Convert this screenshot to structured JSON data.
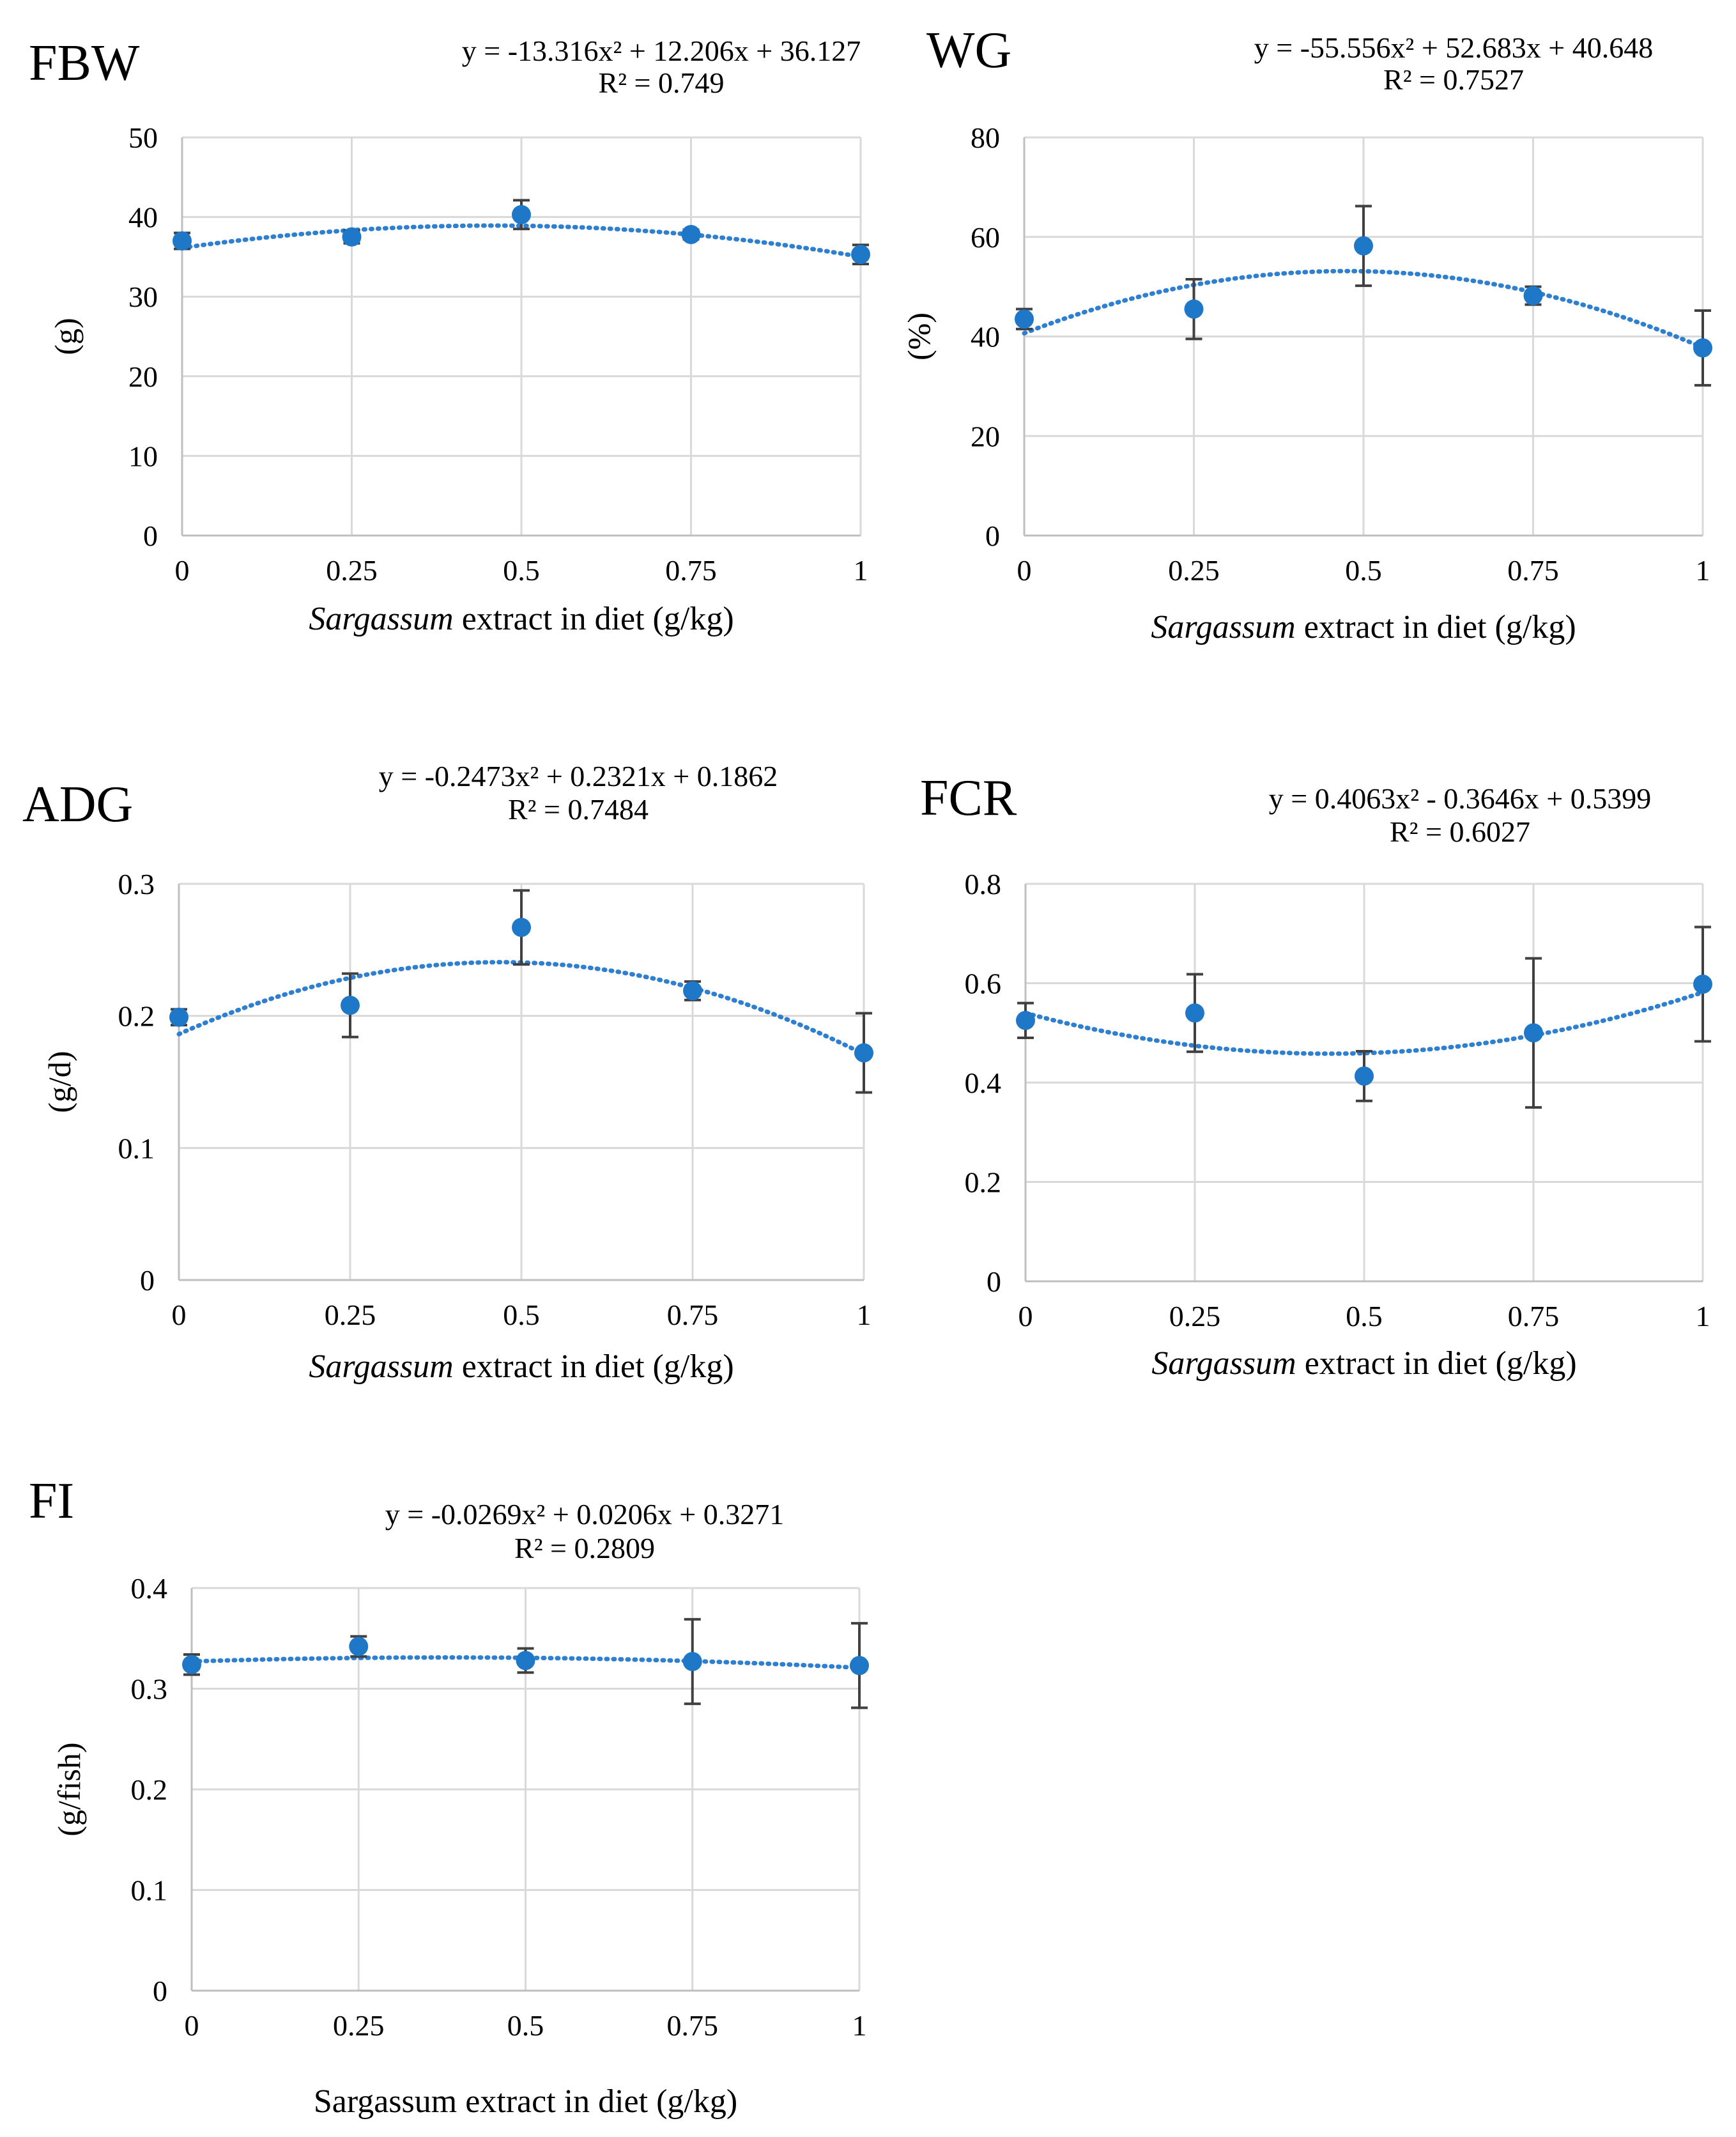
{
  "figure": {
    "colors": {
      "point": "#1f77c8",
      "trend": "#2f7fd0",
      "grid": "#d9d9d9",
      "axis": "#bfbfbf",
      "error": "#404040",
      "text": "#000000"
    }
  },
  "chart_data": [
    {
      "id": "fbw",
      "type": "scatter",
      "panel_title": "FBW",
      "equation": "y = -13.316x² + 12.206x + 36.127",
      "r2": "R² = 0.749",
      "ylabel": "(g)",
      "xlabel_italic": "Sargassum",
      "xlabel_rest": " extract in diet (g/kg)",
      "x": [
        0,
        0.25,
        0.5,
        0.75,
        1
      ],
      "y": [
        37.0,
        37.5,
        40.3,
        37.8,
        35.3
      ],
      "err": [
        1.0,
        0.8,
        1.8,
        0.6,
        1.2
      ],
      "trend": {
        "a": -13.316,
        "b": 12.206,
        "c": 36.127
      },
      "xlim": [
        0,
        1
      ],
      "ylim": [
        0,
        50
      ],
      "yticks": [
        0,
        10,
        20,
        30,
        40,
        50
      ],
      "ytick_labels": [
        "0",
        "10",
        "20",
        "30",
        "40",
        "50"
      ],
      "xtick_labels": [
        "0",
        "0.25",
        "0.5",
        "0.75",
        "1"
      ]
    },
    {
      "id": "wg",
      "type": "scatter",
      "panel_title": "WG",
      "equation": "y = -55.556x² + 52.683x + 40.648",
      "r2": "R² = 0.7527",
      "ylabel": "(%)",
      "xlabel_italic": "Sargassum",
      "xlabel_rest": " extract in diet (g/kg)",
      "x": [
        0,
        0.25,
        0.5,
        0.75,
        1
      ],
      "y": [
        43.5,
        45.5,
        58.2,
        48.2,
        37.7
      ],
      "err": [
        2.0,
        6.0,
        8.0,
        1.8,
        7.5
      ],
      "trend": {
        "a": -55.556,
        "b": 52.683,
        "c": 40.648
      },
      "xlim": [
        0,
        1
      ],
      "ylim": [
        0,
        80
      ],
      "yticks": [
        0,
        20,
        40,
        60,
        80
      ],
      "ytick_labels": [
        "0",
        "20",
        "40",
        "60",
        "80"
      ],
      "xtick_labels": [
        "0",
        "0.25",
        "0.5",
        "0.75",
        "1"
      ]
    },
    {
      "id": "adg",
      "type": "scatter",
      "panel_title": "ADG",
      "equation": "y = -0.2473x² + 0.2321x + 0.1862",
      "r2": "R² = 0.7484",
      "ylabel": "(g/d)",
      "xlabel_italic": "Sargassum",
      "xlabel_rest": " extract in diet (g/kg)",
      "x": [
        0,
        0.25,
        0.5,
        0.75,
        1
      ],
      "y": [
        0.199,
        0.208,
        0.267,
        0.219,
        0.172
      ],
      "err": [
        0.006,
        0.024,
        0.028,
        0.007,
        0.03
      ],
      "trend": {
        "a": -0.2473,
        "b": 0.2321,
        "c": 0.1862
      },
      "xlim": [
        0,
        1
      ],
      "ylim": [
        0,
        0.3
      ],
      "yticks": [
        0,
        0.1,
        0.2,
        0.3
      ],
      "ytick_labels": [
        "0",
        "0.1",
        "0.2",
        "0.3"
      ],
      "xtick_labels": [
        "0",
        "0.25",
        "0.5",
        "0.75",
        "1"
      ]
    },
    {
      "id": "fcr",
      "type": "scatter",
      "panel_title": "FCR",
      "equation": "y = 0.4063x² - 0.3646x + 0.5399",
      "r2": "R² = 0.6027",
      "ylabel": "",
      "xlabel_italic": "Sargassum",
      "xlabel_rest": " extract in diet (g/kg)",
      "x": [
        0,
        0.25,
        0.5,
        0.75,
        1
      ],
      "y": [
        0.525,
        0.54,
        0.413,
        0.5,
        0.598
      ],
      "err": [
        0.035,
        0.078,
        0.05,
        0.15,
        0.115
      ],
      "trend": {
        "a": 0.4063,
        "b": -0.3646,
        "c": 0.5399
      },
      "xlim": [
        0,
        1
      ],
      "ylim": [
        0,
        0.8
      ],
      "yticks": [
        0,
        0.2,
        0.4,
        0.6,
        0.8
      ],
      "ytick_labels": [
        "0",
        "0.2",
        "0.4",
        "0.6",
        "0.8"
      ],
      "xtick_labels": [
        "0",
        "0.25",
        "0.5",
        "0.75",
        "1"
      ]
    },
    {
      "id": "fi",
      "type": "scatter",
      "panel_title": "FI",
      "equation": "y = -0.0269x² + 0.0206x + 0.3271",
      "r2": "R² = 0.2809",
      "ylabel": "(g/fish)",
      "xlabel_italic": "",
      "xlabel_rest": "Sargassum extract in diet (g/kg)",
      "x": [
        0,
        0.25,
        0.5,
        0.75,
        1
      ],
      "y": [
        0.324,
        0.342,
        0.328,
        0.327,
        0.323
      ],
      "err": [
        0.01,
        0.01,
        0.012,
        0.042,
        0.042
      ],
      "trend": {
        "a": -0.0269,
        "b": 0.0206,
        "c": 0.3271
      },
      "xlim": [
        0,
        1
      ],
      "ylim": [
        0,
        0.4
      ],
      "yticks": [
        0,
        0.1,
        0.2,
        0.3,
        0.4
      ],
      "ytick_labels": [
        "0",
        "0.1",
        "0.2",
        "0.3",
        "0.4"
      ],
      "xtick_labels": [
        "0",
        "0.25",
        "0.5",
        "0.75",
        "1"
      ]
    }
  ]
}
